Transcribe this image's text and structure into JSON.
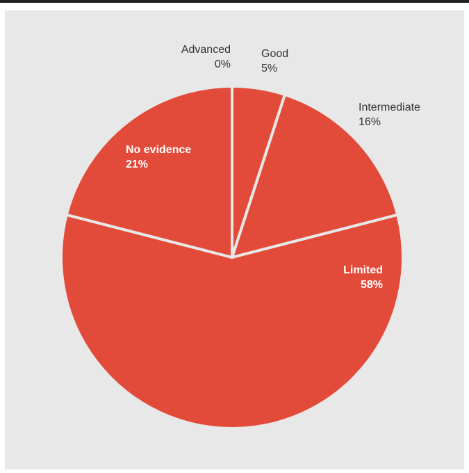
{
  "chart_data": {
    "type": "pie",
    "title": "",
    "slices": [
      {
        "label": "Advanced",
        "value_label": "0%",
        "value": 0,
        "label_style": "outside"
      },
      {
        "label": "Good",
        "value_label": "5%",
        "value": 5,
        "label_style": "outside"
      },
      {
        "label": "Intermediate",
        "value_label": "16%",
        "value": 16,
        "label_style": "outside"
      },
      {
        "label": "Limited",
        "value_label": "58%",
        "value": 58,
        "label_style": "inside"
      },
      {
        "label": "No evidence",
        "value_label": "21%",
        "value": 21,
        "label_style": "inside"
      }
    ],
    "start": "12 o'clock",
    "direction": "clockwise",
    "legend": "none",
    "colors": {
      "slice": "#e24b3a",
      "separator": "#e8e8e8",
      "outside_label": "#333333",
      "inside_label": "#ffffff",
      "background": "#e8e8e8",
      "top_rule": "#231f20"
    }
  }
}
